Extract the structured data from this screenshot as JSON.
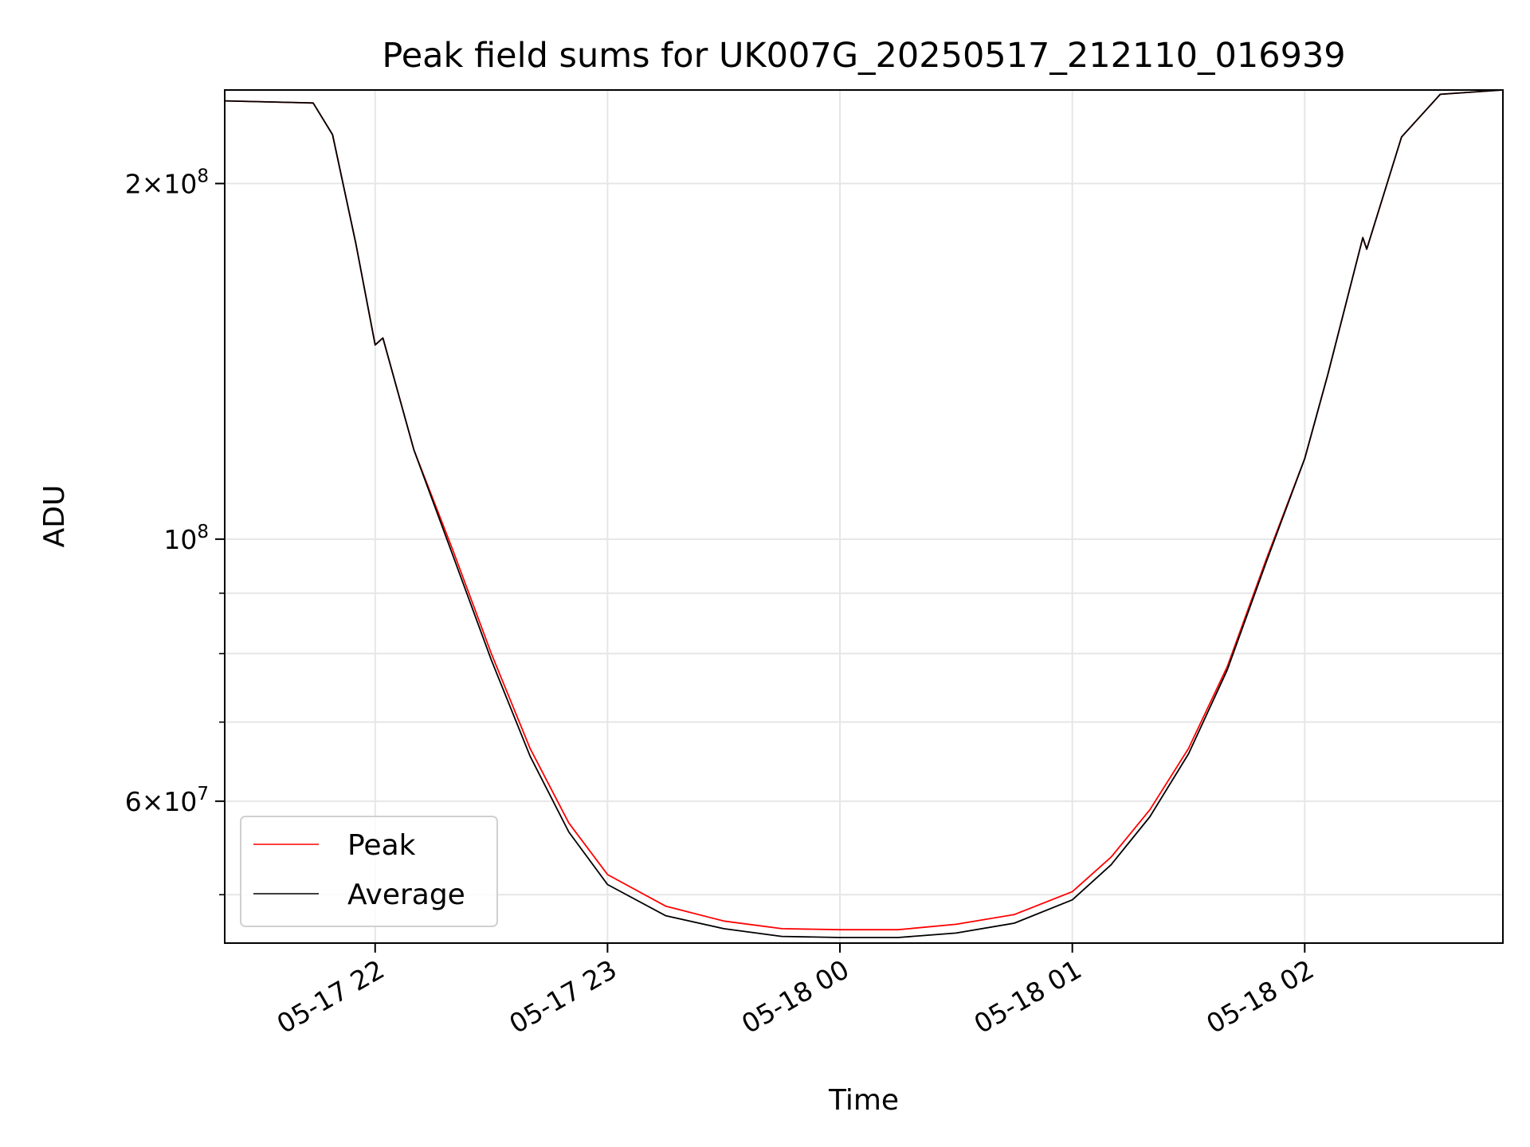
{
  "chart_data": {
    "type": "line",
    "title": "Peak field sums for UK007G_20250517_212110_016939",
    "xlabel": "Time",
    "ylabel": "ADU",
    "yscale": "log",
    "xlim": [
      "2025-05-17 21:21:10",
      "2025-05-18 02:51:10"
    ],
    "ylim": [
      45500000,
      240000000
    ],
    "x_ticks": [
      {
        "value": "2025-05-17 22:00",
        "label": "05-17 22"
      },
      {
        "value": "2025-05-17 23:00",
        "label": "05-17 23"
      },
      {
        "value": "2025-05-18 00:00",
        "label": "05-18 00"
      },
      {
        "value": "2025-05-18 01:00",
        "label": "05-18 01"
      },
      {
        "value": "2025-05-18 02:00",
        "label": "05-18 02"
      }
    ],
    "y_ticks": [
      {
        "value": 200000000,
        "mantissa": "2",
        "exponent": "8"
      },
      {
        "value": 100000000,
        "mantissa": "",
        "exponent": "8"
      },
      {
        "value": 60000000,
        "mantissa": "6",
        "exponent": "7"
      }
    ],
    "y_minor_ticks": [
      50000000,
      70000000,
      80000000,
      90000000
    ],
    "grid": true,
    "legend_position": "lower-left",
    "series": [
      {
        "name": "Peak",
        "color": "#ff0000",
        "points": [
          [
            "2025-05-17 21:21",
            235000000
          ],
          [
            "2025-05-17 21:44",
            234000000
          ],
          [
            "2025-05-17 21:49",
            220000000
          ],
          [
            "2025-05-17 21:55",
            178000000
          ],
          [
            "2025-05-17 22:00",
            146000000
          ],
          [
            "2025-05-17 22:02",
            148000000
          ],
          [
            "2025-05-17 22:10",
            119000000
          ],
          [
            "2025-05-17 22:20",
            98000000
          ],
          [
            "2025-05-17 22:30",
            80000000
          ],
          [
            "2025-05-17 22:40",
            66500000
          ],
          [
            "2025-05-17 22:50",
            57500000
          ],
          [
            "2025-05-17 23:00",
            52000000
          ],
          [
            "2025-05-17 23:15",
            48900000
          ],
          [
            "2025-05-17 23:30",
            47500000
          ],
          [
            "2025-05-17 23:45",
            46800000
          ],
          [
            "2025-05-18 00:00",
            46700000
          ],
          [
            "2025-05-18 00:15",
            46700000
          ],
          [
            "2025-05-18 00:30",
            47200000
          ],
          [
            "2025-05-18 00:45",
            48100000
          ],
          [
            "2025-05-18 01:00",
            50300000
          ],
          [
            "2025-05-18 01:10",
            53800000
          ],
          [
            "2025-05-18 01:20",
            59000000
          ],
          [
            "2025-05-18 01:30",
            66500000
          ],
          [
            "2025-05-18 01:40",
            78000000
          ],
          [
            "2025-05-18 01:50",
            96000000
          ],
          [
            "2025-05-18 02:00",
            117000000
          ],
          [
            "2025-05-18 02:06",
            138000000
          ],
          [
            "2025-05-18 02:15",
            180000000
          ],
          [
            "2025-05-18 02:16",
            176000000
          ],
          [
            "2025-05-18 02:25",
            219000000
          ],
          [
            "2025-05-18 02:35",
            238000000
          ],
          [
            "2025-05-18 02:51",
            240000000
          ]
        ]
      },
      {
        "name": "Average",
        "color": "#000000",
        "points": [
          [
            "2025-05-17 21:21",
            235000000
          ],
          [
            "2025-05-17 21:44",
            234000000
          ],
          [
            "2025-05-17 21:49",
            220000000
          ],
          [
            "2025-05-17 21:55",
            178000000
          ],
          [
            "2025-05-17 22:00",
            146000000
          ],
          [
            "2025-05-17 22:02",
            148000000
          ],
          [
            "2025-05-17 22:10",
            119000000
          ],
          [
            "2025-05-17 22:20",
            97000000
          ],
          [
            "2025-05-17 22:30",
            79000000
          ],
          [
            "2025-05-17 22:40",
            65500000
          ],
          [
            "2025-05-17 22:50",
            56500000
          ],
          [
            "2025-05-17 23:00",
            51000000
          ],
          [
            "2025-05-17 23:15",
            48000000
          ],
          [
            "2025-05-17 23:30",
            46800000
          ],
          [
            "2025-05-17 23:45",
            46100000
          ],
          [
            "2025-05-18 00:00",
            46000000
          ],
          [
            "2025-05-18 00:15",
            46000000
          ],
          [
            "2025-05-18 00:30",
            46400000
          ],
          [
            "2025-05-18 00:45",
            47300000
          ],
          [
            "2025-05-18 01:00",
            49500000
          ],
          [
            "2025-05-18 01:10",
            53000000
          ],
          [
            "2025-05-18 01:20",
            58200000
          ],
          [
            "2025-05-18 01:30",
            65800000
          ],
          [
            "2025-05-18 01:40",
            77500000
          ],
          [
            "2025-05-18 01:50",
            95500000
          ],
          [
            "2025-05-18 02:00",
            117000000
          ],
          [
            "2025-05-18 02:06",
            138000000
          ],
          [
            "2025-05-18 02:15",
            180000000
          ],
          [
            "2025-05-18 02:16",
            176000000
          ],
          [
            "2025-05-18 02:25",
            219000000
          ],
          [
            "2025-05-18 02:35",
            238000000
          ],
          [
            "2025-05-18 02:51",
            240000000
          ]
        ]
      }
    ]
  }
}
